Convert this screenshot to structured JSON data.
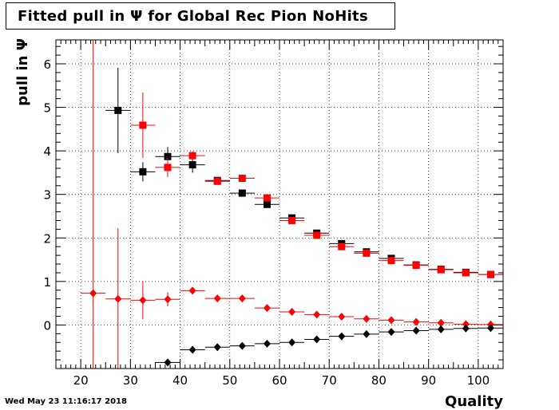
{
  "title": "Fitted pull in  Ψ  for Global Rec Pion NoHits",
  "timestamp": "Wed May 23 11:16:17 2018",
  "chart_data": {
    "type": "scatter",
    "title": "Fitted pull in  Ψ  for Global Rec Pion NoHits",
    "xlabel": "Quality",
    "ylabel": "pull in  Ψ",
    "xlim": [
      15,
      105
    ],
    "ylim": [
      -1.0,
      6.55
    ],
    "xticks": [
      20,
      30,
      40,
      50,
      60,
      70,
      80,
      90,
      100
    ],
    "yticks": [
      0,
      1,
      2,
      3,
      4,
      5,
      6
    ],
    "grid": true,
    "bin_half_width": 2.5,
    "series": [
      {
        "color": "#000000",
        "marker": "square",
        "points": [
          {
            "x": 27.5,
            "y": 4.93,
            "yerr": 0.98
          },
          {
            "x": 32.5,
            "y": 3.52,
            "yerr": 0.22
          },
          {
            "x": 37.5,
            "y": 3.87,
            "yerr": 0.22
          },
          {
            "x": 42.5,
            "y": 3.68,
            "yerr": 0.18
          },
          {
            "x": 47.5,
            "y": 3.32,
            "yerr": 0.08
          },
          {
            "x": 52.5,
            "y": 3.03,
            "yerr": 0.05
          },
          {
            "x": 57.5,
            "y": 2.77,
            "yerr": 0.05
          },
          {
            "x": 62.5,
            "y": 2.46,
            "yerr": 0.04
          },
          {
            "x": 67.5,
            "y": 2.11,
            "yerr": 0.04
          },
          {
            "x": 72.5,
            "y": 1.87,
            "yerr": 0.03
          },
          {
            "x": 77.5,
            "y": 1.68,
            "yerr": 0.03
          },
          {
            "x": 82.5,
            "y": 1.53,
            "yerr": 0.03
          },
          {
            "x": 87.5,
            "y": 1.38,
            "yerr": 0.02
          },
          {
            "x": 92.5,
            "y": 1.28,
            "yerr": 0.02
          },
          {
            "x": 97.5,
            "y": 1.21,
            "yerr": 0.02
          },
          {
            "x": 102.5,
            "y": 1.16,
            "yerr": 0.02
          }
        ]
      },
      {
        "color": "#ff0000",
        "marker": "square",
        "points": [
          {
            "x": 32.5,
            "y": 4.59,
            "yerr": 0.75
          },
          {
            "x": 37.5,
            "y": 3.62,
            "yerr": 0.22
          },
          {
            "x": 42.5,
            "y": 3.89,
            "yerr": 0.1
          },
          {
            "x": 47.5,
            "y": 3.3,
            "yerr": 0.06
          },
          {
            "x": 52.5,
            "y": 3.37,
            "yerr": 0.04
          },
          {
            "x": 57.5,
            "y": 2.92,
            "yerr": 0.04
          },
          {
            "x": 62.5,
            "y": 2.4,
            "yerr": 0.04
          },
          {
            "x": 67.5,
            "y": 2.06,
            "yerr": 0.03
          },
          {
            "x": 72.5,
            "y": 1.8,
            "yerr": 0.03
          },
          {
            "x": 77.5,
            "y": 1.65,
            "yerr": 0.03
          },
          {
            "x": 82.5,
            "y": 1.48,
            "yerr": 0.02
          },
          {
            "x": 87.5,
            "y": 1.37,
            "yerr": 0.02
          },
          {
            "x": 92.5,
            "y": 1.27,
            "yerr": 0.02
          },
          {
            "x": 97.5,
            "y": 1.2,
            "yerr": 0.02
          },
          {
            "x": 102.5,
            "y": 1.16,
            "yerr": 0.02
          }
        ]
      },
      {
        "color": "#ff0000",
        "marker": "diamond",
        "points": [
          {
            "x": 22.5,
            "y": 0.73,
            "yerr": 7.0
          },
          {
            "x": 27.5,
            "y": 0.6,
            "yerr": 1.62
          },
          {
            "x": 32.5,
            "y": 0.57,
            "yerr": 0.44
          },
          {
            "x": 37.5,
            "y": 0.59,
            "yerr": 0.16
          },
          {
            "x": 42.5,
            "y": 0.79,
            "yerr": 0.08
          },
          {
            "x": 47.5,
            "y": 0.61,
            "yerr": 0.03
          },
          {
            "x": 52.5,
            "y": 0.61,
            "yerr": 0.02
          },
          {
            "x": 57.5,
            "y": 0.39,
            "yerr": 0.02
          },
          {
            "x": 62.5,
            "y": 0.3,
            "yerr": 0.01
          },
          {
            "x": 67.5,
            "y": 0.24,
            "yerr": 0.01
          },
          {
            "x": 72.5,
            "y": 0.19,
            "yerr": 0.01
          },
          {
            "x": 77.5,
            "y": 0.14,
            "yerr": 0.01
          },
          {
            "x": 82.5,
            "y": 0.11,
            "yerr": 0.01
          },
          {
            "x": 87.5,
            "y": 0.07,
            "yerr": 0.01
          },
          {
            "x": 92.5,
            "y": 0.05,
            "yerr": 0.01
          },
          {
            "x": 97.5,
            "y": 0.02,
            "yerr": 0.01
          },
          {
            "x": 102.5,
            "y": 0.01,
            "yerr": 0.01
          }
        ]
      },
      {
        "color": "#000000",
        "marker": "diamond",
        "points": [
          {
            "x": 37.5,
            "y": -0.86,
            "yerr": 0.08
          },
          {
            "x": 42.5,
            "y": -0.57,
            "yerr": 0.04
          },
          {
            "x": 47.5,
            "y": -0.51,
            "yerr": 0.02
          },
          {
            "x": 52.5,
            "y": -0.48,
            "yerr": 0.02
          },
          {
            "x": 57.5,
            "y": -0.43,
            "yerr": 0.01
          },
          {
            "x": 62.5,
            "y": -0.4,
            "yerr": 0.01
          },
          {
            "x": 67.5,
            "y": -0.33,
            "yerr": 0.01
          },
          {
            "x": 72.5,
            "y": -0.26,
            "yerr": 0.01
          },
          {
            "x": 77.5,
            "y": -0.21,
            "yerr": 0.01
          },
          {
            "x": 82.5,
            "y": -0.16,
            "yerr": 0.01
          },
          {
            "x": 87.5,
            "y": -0.13,
            "yerr": 0.01
          },
          {
            "x": 92.5,
            "y": -0.1,
            "yerr": 0.01
          },
          {
            "x": 97.5,
            "y": -0.08,
            "yerr": 0.01
          },
          {
            "x": 102.5,
            "y": -0.07,
            "yerr": 0.01
          }
        ]
      }
    ]
  }
}
